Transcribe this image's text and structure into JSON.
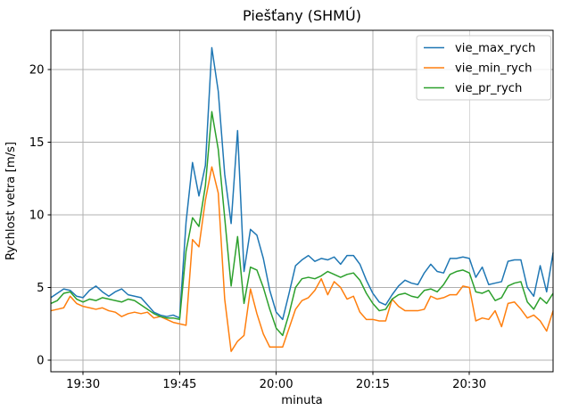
{
  "chart_data": {
    "type": "line",
    "title": "Piešťany (SHMÚ)",
    "xlabel": "minuta",
    "ylabel": "Rychlost vetra [m/s]",
    "grid": true,
    "grid_color": "#b0b0b0",
    "axes_color": "#000000",
    "legend_position": "upper right",
    "ylim": [
      -0.8,
      22.7
    ],
    "yticks": [
      0,
      5,
      10,
      15,
      20
    ],
    "xticks": [
      "19:30",
      "19:45",
      "20:00",
      "20:15",
      "20:30"
    ],
    "x": [
      "19:25",
      "19:26",
      "19:27",
      "19:28",
      "19:29",
      "19:30",
      "19:31",
      "19:32",
      "19:33",
      "19:34",
      "19:35",
      "19:36",
      "19:37",
      "19:38",
      "19:39",
      "19:40",
      "19:41",
      "19:42",
      "19:43",
      "19:44",
      "19:45",
      "19:46",
      "19:47",
      "19:48",
      "19:49",
      "19:50",
      "19:51",
      "19:52",
      "19:53",
      "19:54",
      "19:55",
      "19:56",
      "19:57",
      "19:58",
      "19:59",
      "20:00",
      "20:01",
      "20:02",
      "20:03",
      "20:04",
      "20:05",
      "20:06",
      "20:07",
      "20:08",
      "20:09",
      "20:10",
      "20:11",
      "20:12",
      "20:13",
      "20:14",
      "20:15",
      "20:16",
      "20:17",
      "20:18",
      "20:19",
      "20:20",
      "20:21",
      "20:22",
      "20:23",
      "20:24",
      "20:25",
      "20:26",
      "20:27",
      "20:28",
      "20:29",
      "20:30",
      "20:31",
      "20:32",
      "20:33",
      "20:34",
      "20:35",
      "20:36",
      "20:37",
      "20:38",
      "20:39",
      "20:40",
      "20:41",
      "20:42",
      "20:43"
    ],
    "series": [
      {
        "name": "vie_max_rych",
        "color": "#1f77b4",
        "values": [
          4.3,
          4.6,
          4.9,
          4.8,
          4.4,
          4.3,
          4.8,
          5.1,
          4.7,
          4.4,
          4.7,
          4.9,
          4.5,
          4.4,
          4.3,
          3.8,
          3.3,
          3.1,
          3.0,
          3.1,
          2.9,
          9.5,
          13.6,
          11.3,
          13.4,
          21.5,
          18.5,
          12.8,
          9.4,
          15.8,
          6.1,
          9.0,
          8.6,
          7.0,
          4.8,
          3.3,
          2.8,
          4.6,
          6.5,
          6.9,
          7.2,
          6.8,
          7.0,
          6.9,
          7.1,
          6.6,
          7.2,
          7.2,
          6.6,
          5.5,
          4.6,
          4.0,
          3.8,
          4.5,
          5.1,
          5.5,
          5.3,
          5.2,
          6.0,
          6.6,
          6.1,
          6.0,
          7.0,
          7.0,
          7.1,
          7.0,
          5.7,
          6.4,
          5.2,
          5.3,
          5.4,
          6.8,
          6.9,
          6.9,
          5.0,
          4.4,
          6.5,
          4.7,
          7.4
        ]
      },
      {
        "name": "vie_min_rych",
        "color": "#ff7f0e",
        "values": [
          3.4,
          3.5,
          3.6,
          4.4,
          3.9,
          3.7,
          3.6,
          3.5,
          3.6,
          3.4,
          3.3,
          3.0,
          3.2,
          3.3,
          3.2,
          3.3,
          2.9,
          3.0,
          2.8,
          2.6,
          2.5,
          2.4,
          8.3,
          7.8,
          11.0,
          13.3,
          11.5,
          4.2,
          0.6,
          1.3,
          1.7,
          4.9,
          3.2,
          1.8,
          0.9,
          0.9,
          0.9,
          2.2,
          3.5,
          4.1,
          4.3,
          4.8,
          5.6,
          4.5,
          5.4,
          5.0,
          4.2,
          4.4,
          3.3,
          2.8,
          2.8,
          2.7,
          2.7,
          4.2,
          3.7,
          3.4,
          3.4,
          3.4,
          3.5,
          4.4,
          4.2,
          4.3,
          4.5,
          4.5,
          5.1,
          5.0,
          2.7,
          2.9,
          2.8,
          3.4,
          2.3,
          3.9,
          4.0,
          3.5,
          2.9,
          3.1,
          2.7,
          2.0,
          3.4
        ]
      },
      {
        "name": "vie_pr_rych",
        "color": "#2ca02c",
        "values": [
          3.9,
          4.1,
          4.6,
          4.7,
          4.2,
          4.0,
          4.2,
          4.1,
          4.3,
          4.2,
          4.1,
          4.0,
          4.2,
          4.1,
          3.8,
          3.5,
          3.2,
          3.0,
          2.9,
          2.9,
          2.8,
          7.5,
          9.8,
          9.2,
          12.0,
          17.1,
          14.5,
          9.8,
          5.1,
          8.5,
          3.9,
          6.4,
          6.2,
          5.0,
          3.5,
          2.2,
          1.7,
          3.2,
          5.0,
          5.6,
          5.7,
          5.6,
          5.8,
          6.1,
          5.9,
          5.7,
          5.9,
          6.0,
          5.5,
          4.6,
          3.9,
          3.4,
          3.5,
          4.2,
          4.5,
          4.6,
          4.4,
          4.3,
          4.8,
          4.9,
          4.7,
          5.2,
          5.9,
          6.1,
          6.2,
          6.0,
          4.7,
          4.6,
          4.8,
          4.1,
          4.3,
          5.1,
          5.3,
          5.4,
          4.0,
          3.5,
          4.3,
          3.9,
          4.6
        ]
      }
    ]
  }
}
